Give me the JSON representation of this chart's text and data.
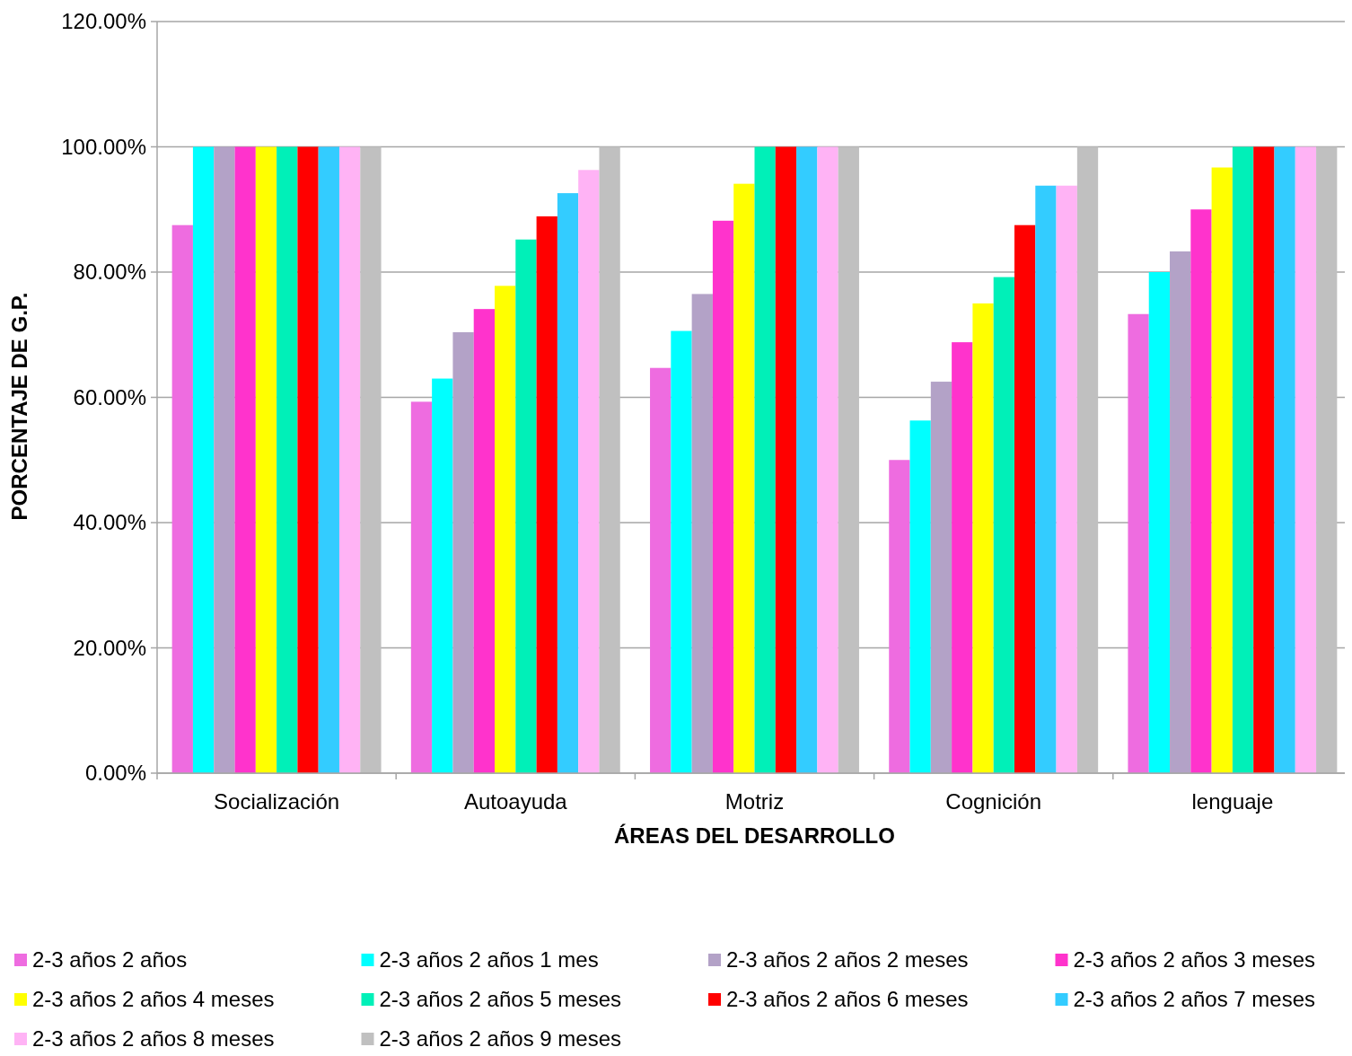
{
  "chart_data": {
    "type": "bar",
    "xlabel": "ÁREAS DEL DESARROLLO",
    "ylabel": "PORCENTAJE DE G.P.",
    "categories": [
      "Socialización",
      "Autoayuda",
      "Motriz",
      "Cognición",
      "lenguaje"
    ],
    "series": [
      {
        "name": "2-3 años 2 años",
        "color": "#ee6ce0",
        "values": [
          87.5,
          59.3,
          64.7,
          50,
          73.3
        ]
      },
      {
        "name": "2-3 años 2 años 1 mes",
        "color": "#00ffff",
        "values": [
          100,
          63,
          70.6,
          56.3,
          80
        ]
      },
      {
        "name": "2-3 años 2 años 2 meses",
        "color": "#b3a2c7",
        "values": [
          100,
          70.4,
          76.5,
          62.5,
          83.3
        ]
      },
      {
        "name": "2-3 años 2 años 3 meses",
        "color": "#ff33cc",
        "values": [
          100,
          74.1,
          88.2,
          68.8,
          90
        ]
      },
      {
        "name": "2-3 años 2 años 4 meses",
        "color": "#ffff00",
        "values": [
          100,
          77.8,
          94.1,
          75,
          96.7
        ]
      },
      {
        "name": "2-3 años 2 años 5 meses",
        "color": "#00f0b8",
        "values": [
          100,
          85.2,
          100,
          79.2,
          100
        ]
      },
      {
        "name": "2-3 años 2 años 6 meses",
        "color": "#ff0000",
        "values": [
          100,
          88.9,
          100,
          87.5,
          100
        ]
      },
      {
        "name": "2-3 años 2 años 7 meses",
        "color": "#33ccff",
        "values": [
          100,
          92.6,
          100,
          93.8,
          100
        ]
      },
      {
        "name": "2-3 años 2 años 8 meses",
        "color": "#ffb3f5",
        "values": [
          100,
          96.3,
          100,
          93.8,
          100
        ]
      },
      {
        "name": "2-3 años 2 años 9 meses",
        "color": "#c0c0c0",
        "values": [
          100,
          100,
          100,
          100,
          100
        ]
      }
    ],
    "ylim": [
      0,
      120
    ],
    "yticks": [
      {
        "value": 0,
        "label": "0.00%"
      },
      {
        "value": 20,
        "label": "20.00%"
      },
      {
        "value": 40,
        "label": "40.00%"
      },
      {
        "value": 60,
        "label": "60.00%"
      },
      {
        "value": 80,
        "label": "80.00%"
      },
      {
        "value": 100,
        "label": "100.00%"
      },
      {
        "value": 120,
        "label": "120.00%"
      }
    ],
    "grid": "y",
    "legend": "bottom"
  }
}
